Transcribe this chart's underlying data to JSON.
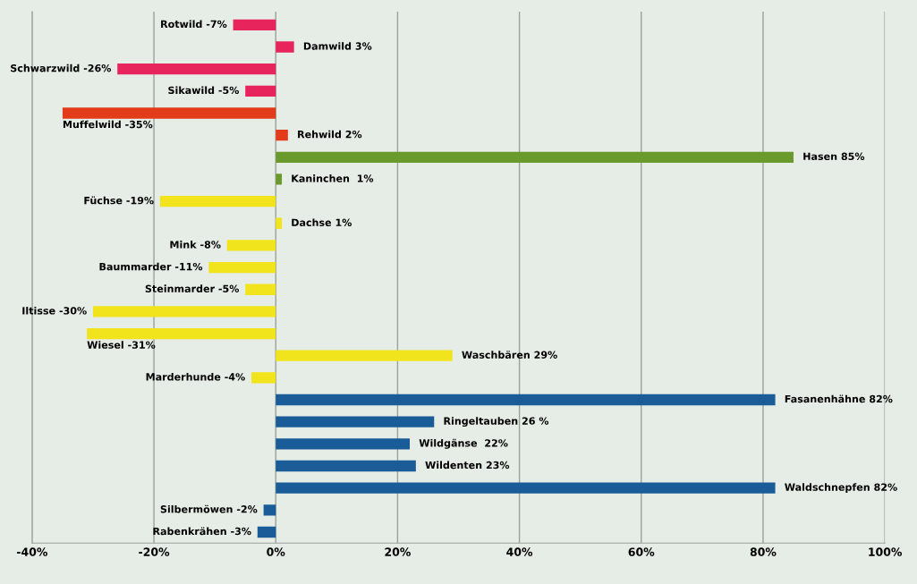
{
  "chart_data": {
    "type": "bar",
    "orientation": "horizontal",
    "categories": [
      null,
      null,
      null,
      null,
      null,
      null,
      null,
      null,
      null,
      null,
      null,
      null,
      null,
      null,
      null,
      null,
      null,
      null,
      null,
      null,
      null,
      null,
      null,
      null
    ],
    "values": [
      -7,
      3,
      -26,
      -5,
      -35,
      2,
      85,
      1,
      -19,
      1,
      -8,
      -11,
      -5,
      -30,
      -31,
      29,
      -4,
      82,
      26,
      22,
      23,
      82,
      -2,
      -3
    ],
    "colors": [
      "#e8245c",
      "#e8245c",
      "#e8245c",
      "#e8245c",
      "#e23c1a",
      "#e23c1a",
      "#6a9a2c",
      "#6a9a2c",
      "#f2e41c",
      "#f2e41c",
      "#f2e41c",
      "#f2e41c",
      "#f2e41c",
      "#f2e41c",
      "#f2e41c",
      "#f2e41c",
      "#f2e41c",
      "#1a5c98",
      "#1a5c98",
      "#1a5c98",
      "#1a5c98",
      "#1a5c98",
      "#1a5c98",
      "#1a5c98"
    ],
    "value_labels": [
      "Rotwild -7%",
      "Damwild 3%",
      "Schwarzwild -26%",
      "Sikawild -5%",
      "Muffelwild -35%",
      "Rehwild 2%",
      "Hasen 85%",
      "Kaninchen  1%",
      "Füchse -19%",
      "Dachse 1%",
      "Mink -8%",
      "Baummarder -11%",
      "Steinmarder -5%",
      "Iltisse -30%",
      "Wiesel -31%",
      "Waschbären 29%",
      "Marderhunde -4%",
      "Fasanenhähne 82%",
      "Ringeltauben 26 %",
      "Wildgänse  22%",
      "Wildenten 23%",
      "Waldschnepfen 82%",
      "Silbermöwen -2%",
      "Rabenkrähen -3%"
    ],
    "xlim": [
      -40,
      100
    ],
    "xticks": [
      {
        "value": -40,
        "label": "-40%"
      },
      {
        "value": -20,
        "label": "-20%"
      },
      {
        "value": 0,
        "label": "0%"
      },
      {
        "value": 20,
        "label": "20%"
      },
      {
        "value": 40,
        "label": "40%"
      },
      {
        "value": 60,
        "label": "60%"
      },
      {
        "value": 80,
        "label": "80%"
      },
      {
        "value": 100,
        "label": "100%"
      }
    ],
    "grid": "x",
    "tick_labels": "x"
  }
}
